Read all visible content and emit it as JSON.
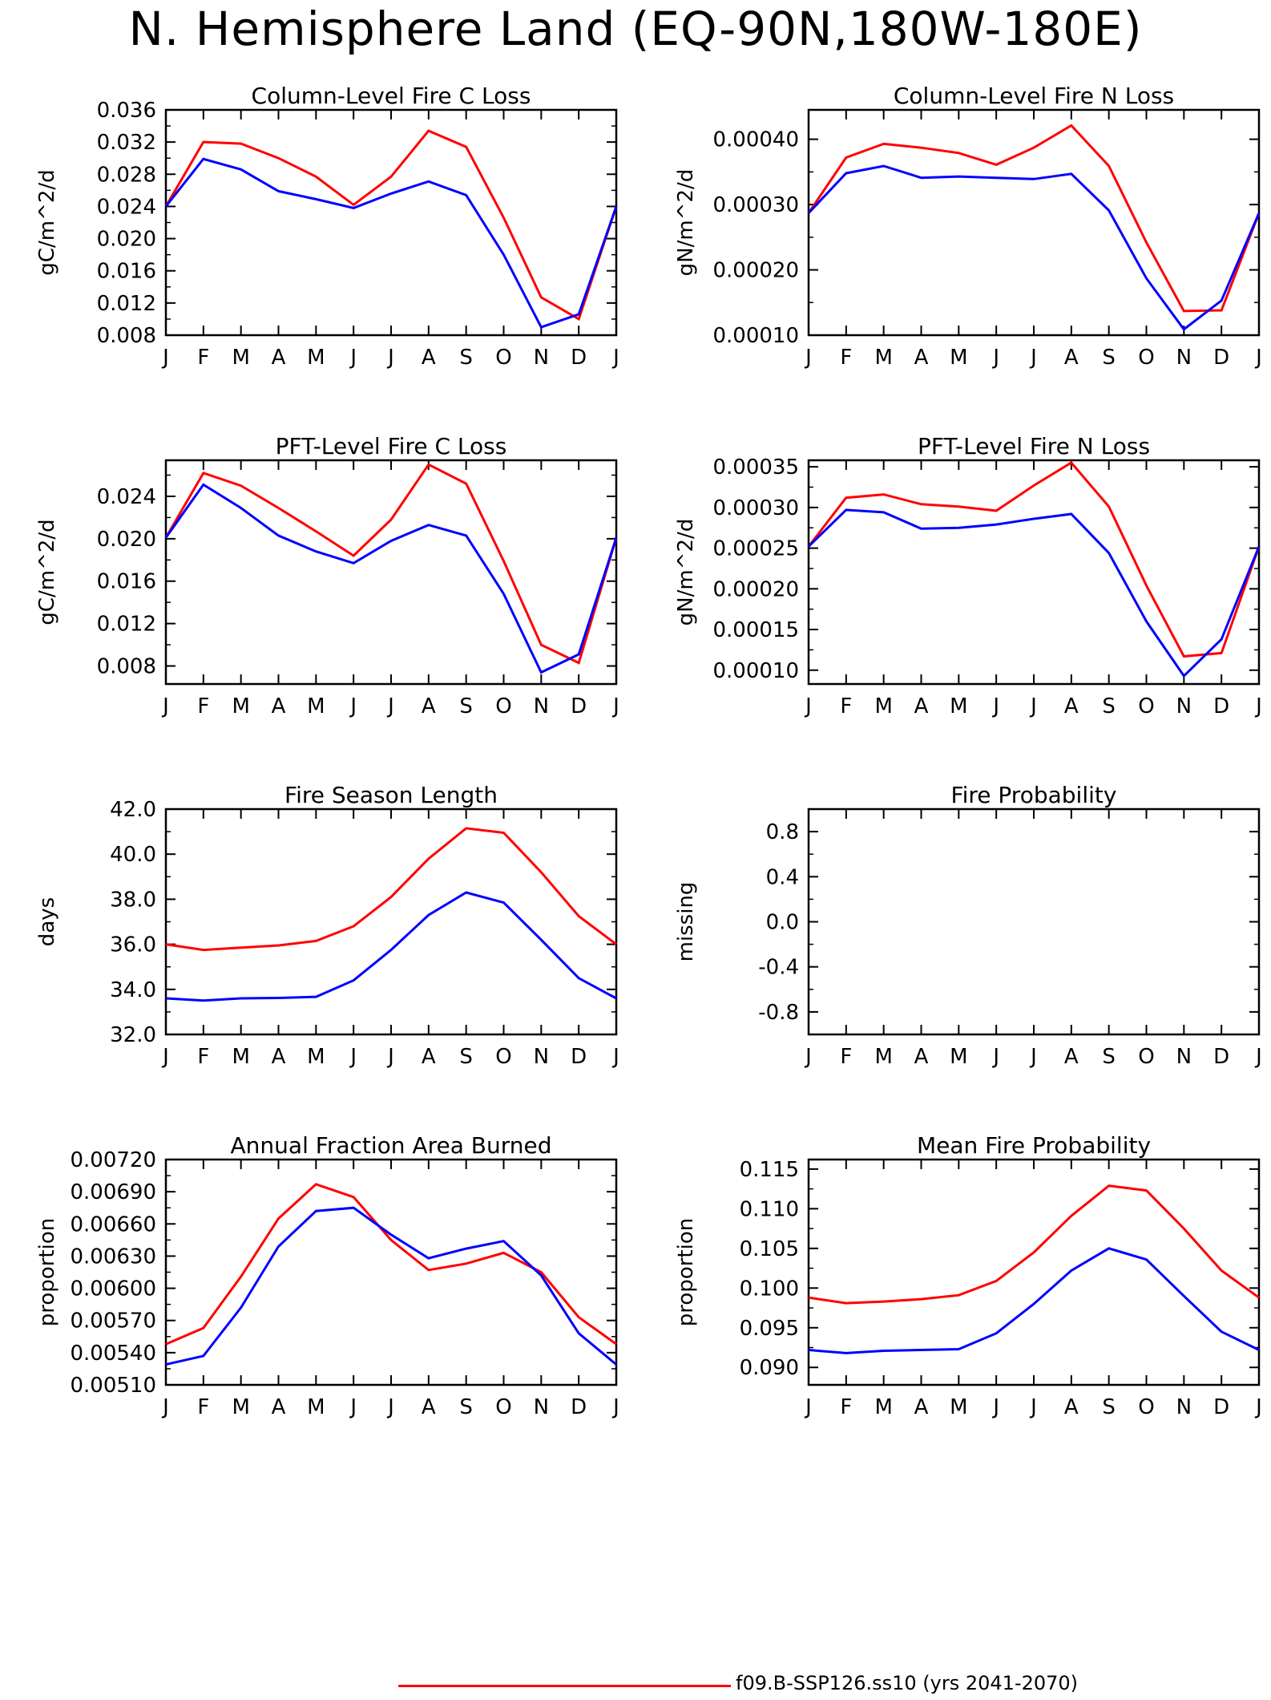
{
  "page": {
    "title": "N. Hemisphere Land (EQ-90N,180W-180E)"
  },
  "legend": {
    "entries": [
      {
        "label": "f09.B-SSP126.ss10 (yrs 2041-2070)",
        "color": "#ff0000"
      }
    ]
  },
  "colors": {
    "series_a": "#ff0000",
    "series_b": "#0000ff"
  },
  "months": [
    "J",
    "F",
    "M",
    "A",
    "M",
    "J",
    "J",
    "A",
    "S",
    "O",
    "N",
    "D",
    "J"
  ],
  "chart_data": [
    {
      "type": "line",
      "title": "Column-Level Fire C Loss",
      "ylabel": "gC/m^2/d",
      "ylim": [
        0.008,
        0.036
      ],
      "yticks": [
        "0.008",
        "0.012",
        "0.016",
        "0.020",
        "0.024",
        "0.028",
        "0.032",
        "0.036"
      ],
      "ytick_values": [
        0.008,
        0.012,
        0.016,
        0.02,
        0.024,
        0.028,
        0.032,
        0.036
      ],
      "x": [
        "J",
        "F",
        "M",
        "A",
        "M",
        "J",
        "J",
        "A",
        "S",
        "O",
        "N",
        "D",
        "J"
      ],
      "series": [
        {
          "color": "#ff0000",
          "values": [
            0.024,
            0.032,
            0.0318,
            0.03,
            0.0277,
            0.0242,
            0.0277,
            0.0334,
            0.0314,
            0.0226,
            0.0127,
            0.01,
            0.024
          ]
        },
        {
          "color": "#0000ff",
          "values": [
            0.024,
            0.0299,
            0.0286,
            0.0259,
            0.0249,
            0.0238,
            0.0256,
            0.0271,
            0.0254,
            0.018,
            0.009,
            0.0106,
            0.024
          ]
        }
      ]
    },
    {
      "type": "line",
      "title": "Column-Level Fire N Loss",
      "ylabel": "gN/m^2/d",
      "ylim": [
        0.0001,
        0.000445
      ],
      "yticks": [
        "0.00010",
        "0.00020",
        "0.00030",
        "0.00040"
      ],
      "ytick_values": [
        0.0001,
        0.0002,
        0.0003,
        0.0004
      ],
      "x": [
        "J",
        "F",
        "M",
        "A",
        "M",
        "J",
        "J",
        "A",
        "S",
        "O",
        "N",
        "D",
        "J"
      ],
      "series": [
        {
          "color": "#ff0000",
          "values": [
            0.000287,
            0.000372,
            0.000393,
            0.000387,
            0.000379,
            0.000361,
            0.000387,
            0.000421,
            0.000359,
            0.000242,
            0.000137,
            0.000138,
            0.000287
          ]
        },
        {
          "color": "#0000ff",
          "values": [
            0.000287,
            0.000348,
            0.000359,
            0.000341,
            0.000343,
            0.000341,
            0.000339,
            0.000347,
            0.000291,
            0.000187,
            0.000109,
            0.000153,
            0.000287
          ]
        }
      ]
    },
    {
      "type": "line",
      "title": "PFT-Level Fire C Loss",
      "ylabel": "gC/m^2/d",
      "ylim": [
        0.0063,
        0.0274
      ],
      "yticks": [
        "0.008",
        "0.012",
        "0.016",
        "0.020",
        "0.024"
      ],
      "ytick_values": [
        0.008,
        0.012,
        0.016,
        0.02,
        0.024
      ],
      "x": [
        "J",
        "F",
        "M",
        "A",
        "M",
        "J",
        "J",
        "A",
        "S",
        "O",
        "N",
        "D",
        "J"
      ],
      "series": [
        {
          "color": "#ff0000",
          "values": [
            0.0201,
            0.0262,
            0.025,
            0.0229,
            0.0207,
            0.0184,
            0.0218,
            0.027,
            0.0252,
            0.0179,
            0.01,
            0.0083,
            0.0201
          ]
        },
        {
          "color": "#0000ff",
          "values": [
            0.0201,
            0.0251,
            0.0229,
            0.0203,
            0.0188,
            0.0177,
            0.0198,
            0.0213,
            0.0203,
            0.0148,
            0.0074,
            0.0091,
            0.0201
          ]
        }
      ]
    },
    {
      "type": "line",
      "title": "PFT-Level Fire N Loss",
      "ylabel": "gN/m^2/d",
      "ylim": [
        8.3e-05,
        0.000358
      ],
      "yticks": [
        "0.00010",
        "0.00015",
        "0.00020",
        "0.00025",
        "0.00030",
        "0.00035"
      ],
      "ytick_values": [
        0.0001,
        0.00015,
        0.0002,
        0.00025,
        0.0003,
        0.00035
      ],
      "x": [
        "J",
        "F",
        "M",
        "A",
        "M",
        "J",
        "J",
        "A",
        "S",
        "O",
        "N",
        "D",
        "J"
      ],
      "series": [
        {
          "color": "#ff0000",
          "values": [
            0.000252,
            0.000312,
            0.000316,
            0.000304,
            0.000301,
            0.000296,
            0.000327,
            0.000355,
            0.000301,
            0.000204,
            0.000117,
            0.000121,
            0.000252
          ]
        },
        {
          "color": "#0000ff",
          "values": [
            0.000252,
            0.000297,
            0.000294,
            0.000274,
            0.000275,
            0.000279,
            0.000286,
            0.000292,
            0.000244,
            0.00016,
            9.3e-05,
            0.000138,
            0.000252
          ]
        }
      ]
    },
    {
      "type": "line",
      "title": "Fire Season Length",
      "ylabel": "days",
      "ylim": [
        32.0,
        42.0
      ],
      "yticks": [
        "32.0",
        "34.0",
        "36.0",
        "38.0",
        "40.0",
        "42.0"
      ],
      "ytick_values": [
        32,
        34,
        36,
        38,
        40,
        42
      ],
      "x": [
        "J",
        "F",
        "M",
        "A",
        "M",
        "J",
        "J",
        "A",
        "S",
        "O",
        "N",
        "D",
        "J"
      ],
      "series": [
        {
          "color": "#ff0000",
          "values": [
            36.0,
            35.75,
            35.85,
            35.95,
            36.15,
            36.8,
            38.1,
            39.8,
            41.15,
            40.95,
            39.2,
            37.25,
            36.0
          ]
        },
        {
          "color": "#0000ff",
          "values": [
            33.6,
            33.5,
            33.6,
            33.62,
            33.67,
            34.4,
            35.75,
            37.3,
            38.3,
            37.85,
            36.2,
            34.5,
            33.6
          ]
        }
      ]
    },
    {
      "type": "line",
      "title": "Fire Probability",
      "ylabel": "missing",
      "ylim": [
        -1.0,
        1.0
      ],
      "yticks": [
        "-0.8",
        "-0.4",
        "0.0",
        "0.4",
        "0.8"
      ],
      "ytick_values": [
        -0.8,
        -0.4,
        0.0,
        0.4,
        0.8
      ],
      "x": [
        "J",
        "F",
        "M",
        "A",
        "M",
        "J",
        "J",
        "A",
        "S",
        "O",
        "N",
        "D",
        "J"
      ],
      "series": []
    },
    {
      "type": "line",
      "title": "Annual Fraction Area Burned",
      "ylabel": "proportion",
      "ylim": [
        0.0051,
        0.0072
      ],
      "yticks": [
        "0.00510",
        "0.00540",
        "0.00570",
        "0.00600",
        "0.00630",
        "0.00660",
        "0.00690",
        "0.00720"
      ],
      "ytick_values": [
        0.0051,
        0.0054,
        0.0057,
        0.006,
        0.0063,
        0.0066,
        0.0069,
        0.0072
      ],
      "x": [
        "J",
        "F",
        "M",
        "A",
        "M",
        "J",
        "J",
        "A",
        "S",
        "O",
        "N",
        "D",
        "J"
      ],
      "series": [
        {
          "color": "#ff0000",
          "values": [
            0.00548,
            0.00563,
            0.00611,
            0.00665,
            0.00697,
            0.00685,
            0.00645,
            0.00617,
            0.00623,
            0.00633,
            0.00615,
            0.00573,
            0.00548
          ]
        },
        {
          "color": "#0000ff",
          "values": [
            0.00529,
            0.00537,
            0.00582,
            0.00639,
            0.00672,
            0.00675,
            0.0065,
            0.00628,
            0.00637,
            0.00644,
            0.00612,
            0.00558,
            0.00529
          ]
        }
      ]
    },
    {
      "type": "line",
      "title": "Mean Fire Probability",
      "ylabel": "proportion",
      "ylim": [
        0.0878,
        0.1162
      ],
      "yticks": [
        "0.090",
        "0.095",
        "0.100",
        "0.105",
        "0.110",
        "0.115"
      ],
      "ytick_values": [
        0.09,
        0.095,
        0.1,
        0.105,
        0.11,
        0.115
      ],
      "x": [
        "J",
        "F",
        "M",
        "A",
        "M",
        "J",
        "J",
        "A",
        "S",
        "O",
        "N",
        "D",
        "J"
      ],
      "series": [
        {
          "color": "#ff0000",
          "values": [
            0.0988,
            0.0981,
            0.0983,
            0.0986,
            0.0991,
            0.1009,
            0.1045,
            0.1091,
            0.1129,
            0.1123,
            0.1075,
            0.1022,
            0.0988
          ]
        },
        {
          "color": "#0000ff",
          "values": [
            0.0922,
            0.0918,
            0.0921,
            0.0922,
            0.0923,
            0.0943,
            0.098,
            0.1022,
            0.105,
            0.1036,
            0.099,
            0.0945,
            0.0922
          ]
        }
      ]
    }
  ]
}
